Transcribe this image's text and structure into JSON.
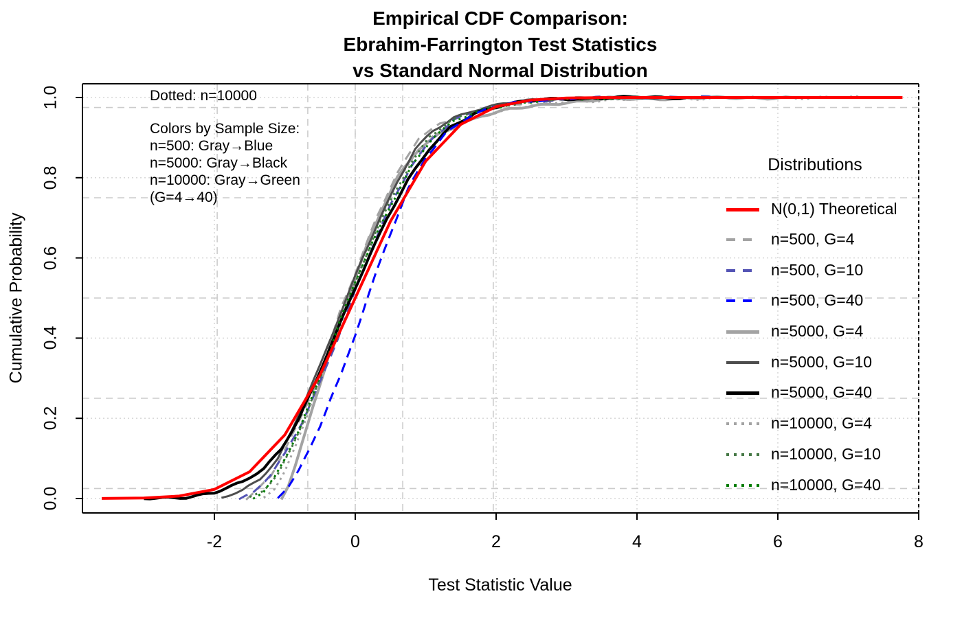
{
  "title": {
    "line1": "Empirical CDF Comparison:",
    "line2": "Ebrahim-Farrington Test Statistics",
    "line3": "vs Standard Normal Distribution"
  },
  "annotations": {
    "dotted_note": "Dotted: n=10000",
    "color_note_lines": [
      "Colors by Sample Size:",
      "n=500: Gray→Blue",
      "n=5000: Gray→Black",
      "n=10000: Gray→Green",
      "(G=4→40)"
    ]
  },
  "legend": {
    "title": "Distributions"
  },
  "chart_data": {
    "type": "line",
    "title": "Empirical CDF Comparison: Ebrahim-Farrington Test Statistics vs Standard Normal Distribution",
    "xlabel": "Test Statistic Value",
    "ylabel": "Cumulative Probability",
    "xlim": [
      -3.87,
      8.0
    ],
    "ylim": [
      -0.036,
      1.034
    ],
    "x_ticks": [
      -2,
      0,
      2,
      4,
      6,
      8
    ],
    "x_tick_labels": [
      "-2",
      "0",
      "2",
      "4",
      "6",
      "8"
    ],
    "y_ticks": [
      0.0,
      0.2,
      0.4,
      0.6,
      0.8,
      1.0
    ],
    "y_tick_labels": [
      "0.0",
      "0.2",
      "0.4",
      "0.6",
      "0.8",
      "1.0"
    ],
    "grid": {
      "tick_grid_style": "dotted",
      "tick_grid_color": "#d9d9d9",
      "quantile_lines_style": "dashed",
      "quantile_lines_color": "#cccccc",
      "h_quantiles": [
        0.025,
        0.25,
        0.5,
        0.75,
        0.975
      ],
      "v_quantiles": [
        -1.96,
        -0.674,
        0,
        0.674,
        1.96
      ]
    },
    "box": {
      "right_edge_style": "dashed",
      "right_edge_color": "#000000"
    },
    "legend_position": "right",
    "series": [
      {
        "name": "N(0,1) Theoretical",
        "color": "#ff0000",
        "style": "solid",
        "lw": 4,
        "z": 10,
        "jitter": false,
        "points": [
          [
            -3.6,
            0.0002
          ],
          [
            -3.0,
            0.0013
          ],
          [
            -2.5,
            0.0062
          ],
          [
            -2.0,
            0.0228
          ],
          [
            -1.5,
            0.0668
          ],
          [
            -1.0,
            0.1587
          ],
          [
            -0.5,
            0.3085
          ],
          [
            0,
            0.5
          ],
          [
            0.5,
            0.6915
          ],
          [
            1.0,
            0.8413
          ],
          [
            1.5,
            0.9332
          ],
          [
            2.0,
            0.9772
          ],
          [
            2.5,
            0.9938
          ],
          [
            3.0,
            0.9987
          ],
          [
            3.5,
            0.9998
          ],
          [
            4.0,
            1
          ],
          [
            7.77,
            1
          ]
        ]
      },
      {
        "name": "n=500, G=4",
        "color": "#a3a3a3",
        "style": "dashed",
        "lw": 3,
        "z": 2,
        "jitter": true,
        "points": [
          [
            -1.55,
            0
          ],
          [
            -1.4,
            0.02
          ],
          [
            -1.2,
            0.055
          ],
          [
            -1.0,
            0.12
          ],
          [
            -0.8,
            0.19
          ],
          [
            -0.6,
            0.27
          ],
          [
            -0.4,
            0.36
          ],
          [
            -0.2,
            0.48
          ],
          [
            0,
            0.56
          ],
          [
            0.3,
            0.7
          ],
          [
            0.6,
            0.81
          ],
          [
            0.9,
            0.9
          ],
          [
            1.2,
            0.935
          ],
          [
            1.5,
            0.955
          ],
          [
            2.0,
            0.975
          ],
          [
            2.5,
            0.99
          ],
          [
            3.0,
            0.997
          ],
          [
            3.6,
            1
          ],
          [
            4.1,
            1
          ]
        ]
      },
      {
        "name": "n=500, G=10",
        "color": "#5353b4",
        "style": "dashed",
        "lw": 3,
        "z": 4,
        "jitter": true,
        "points": [
          [
            -1.65,
            0
          ],
          [
            -1.45,
            0.015
          ],
          [
            -1.2,
            0.06
          ],
          [
            -1.0,
            0.11
          ],
          [
            -0.75,
            0.19
          ],
          [
            -0.5,
            0.29
          ],
          [
            -0.25,
            0.4
          ],
          [
            0,
            0.52
          ],
          [
            0.25,
            0.63
          ],
          [
            0.5,
            0.73
          ],
          [
            0.8,
            0.83
          ],
          [
            1.1,
            0.9
          ],
          [
            1.4,
            0.945
          ],
          [
            1.8,
            0.972
          ],
          [
            2.2,
            0.985
          ],
          [
            2.8,
            0.995
          ],
          [
            3.5,
            0.999
          ],
          [
            4.2,
            1
          ],
          [
            5.2,
            1
          ]
        ]
      },
      {
        "name": "n=500, G=40",
        "color": "#0000ff",
        "style": "dashed",
        "lw": 3,
        "z": 9,
        "jitter": true,
        "points": [
          [
            -1.1,
            0
          ],
          [
            -0.95,
            0.03
          ],
          [
            -0.8,
            0.07
          ],
          [
            -0.65,
            0.12
          ],
          [
            -0.5,
            0.18
          ],
          [
            -0.35,
            0.25
          ],
          [
            -0.2,
            0.31
          ],
          [
            0,
            0.41
          ],
          [
            0.15,
            0.49
          ],
          [
            0.3,
            0.565
          ],
          [
            0.5,
            0.66
          ],
          [
            0.75,
            0.77
          ],
          [
            1.0,
            0.85
          ],
          [
            1.3,
            0.915
          ],
          [
            1.6,
            0.952
          ],
          [
            2.0,
            0.978
          ],
          [
            2.4,
            0.99
          ],
          [
            3.0,
            0.998
          ],
          [
            3.3,
            1
          ]
        ]
      },
      {
        "name": "n=5000, G=4",
        "color": "#a3a3a3",
        "style": "solid",
        "lw": 4,
        "z": 1,
        "jitter": true,
        "points": [
          [
            -1.05,
            0
          ],
          [
            -0.95,
            0.03
          ],
          [
            -0.85,
            0.08
          ],
          [
            -0.75,
            0.14
          ],
          [
            -0.6,
            0.23
          ],
          [
            -0.45,
            0.31
          ],
          [
            -0.3,
            0.4
          ],
          [
            -0.15,
            0.47
          ],
          [
            0,
            0.55
          ],
          [
            0.2,
            0.65
          ],
          [
            0.4,
            0.73
          ],
          [
            0.6,
            0.8
          ],
          [
            0.9,
            0.87
          ],
          [
            1.2,
            0.91
          ],
          [
            1.5,
            0.935
          ],
          [
            1.8,
            0.955
          ],
          [
            2.2,
            0.97
          ],
          [
            2.8,
            0.985
          ],
          [
            3.5,
            0.995
          ],
          [
            4.5,
            0.998
          ],
          [
            5.5,
            0.999
          ],
          [
            6.2,
            1
          ]
        ]
      },
      {
        "name": "n=5000, G=10",
        "color": "#4d4d4d",
        "style": "solid",
        "lw": 3,
        "z": 5,
        "jitter": true,
        "points": [
          [
            -1.9,
            0
          ],
          [
            -1.6,
            0.02
          ],
          [
            -1.35,
            0.05
          ],
          [
            -1.1,
            0.1
          ],
          [
            -0.9,
            0.17
          ],
          [
            -0.7,
            0.25
          ],
          [
            -0.5,
            0.33
          ],
          [
            -0.3,
            0.42
          ],
          [
            -0.1,
            0.51
          ],
          [
            0.1,
            0.6
          ],
          [
            0.35,
            0.7
          ],
          [
            0.6,
            0.79
          ],
          [
            0.85,
            0.87
          ],
          [
            1.1,
            0.915
          ],
          [
            1.4,
            0.95
          ],
          [
            1.7,
            0.97
          ],
          [
            2.1,
            0.985
          ],
          [
            2.6,
            0.994
          ],
          [
            3.2,
            0.998
          ],
          [
            4.5,
            1
          ]
        ]
      },
      {
        "name": "n=5000, G=40",
        "color": "#000000",
        "style": "solid",
        "lw": 4,
        "z": 7,
        "jitter": true,
        "points": [
          [
            -3.0,
            0
          ],
          [
            -2.4,
            0.004
          ],
          [
            -2.0,
            0.014
          ],
          [
            -1.6,
            0.04
          ],
          [
            -1.3,
            0.075
          ],
          [
            -1.05,
            0.125
          ],
          [
            -0.8,
            0.2
          ],
          [
            -0.55,
            0.295
          ],
          [
            -0.3,
            0.4
          ],
          [
            -0.05,
            0.505
          ],
          [
            0.2,
            0.605
          ],
          [
            0.45,
            0.7
          ],
          [
            0.75,
            0.795
          ],
          [
            1.05,
            0.87
          ],
          [
            1.35,
            0.925
          ],
          [
            1.7,
            0.962
          ],
          [
            2.1,
            0.982
          ],
          [
            2.6,
            0.994
          ],
          [
            3.1,
            0.998
          ],
          [
            3.9,
            1
          ],
          [
            4.7,
            1
          ]
        ]
      },
      {
        "name": "n=10000, G=4",
        "color": "#a3a3a3",
        "style": "dotted",
        "lw": 3,
        "z": 3,
        "jitter": true,
        "points": [
          [
            -1.3,
            0
          ],
          [
            -1.15,
            0.025
          ],
          [
            -1.0,
            0.07
          ],
          [
            -0.85,
            0.13
          ],
          [
            -0.7,
            0.2
          ],
          [
            -0.55,
            0.28
          ],
          [
            -0.4,
            0.36
          ],
          [
            -0.25,
            0.43
          ],
          [
            -0.05,
            0.52
          ],
          [
            0.15,
            0.62
          ],
          [
            0.35,
            0.7
          ],
          [
            0.6,
            0.79
          ],
          [
            0.85,
            0.86
          ],
          [
            1.1,
            0.9
          ],
          [
            1.4,
            0.93
          ],
          [
            1.8,
            0.955
          ],
          [
            2.3,
            0.975
          ],
          [
            3.0,
            0.99
          ],
          [
            4.0,
            0.996
          ],
          [
            5.0,
            0.998
          ],
          [
            6.0,
            0.999
          ],
          [
            7.2,
            1
          ]
        ]
      },
      {
        "name": "n=10000, G=10",
        "color": "#457845",
        "style": "dotted",
        "lw": 3,
        "z": 6,
        "jitter": true,
        "points": [
          [
            -1.5,
            0
          ],
          [
            -1.3,
            0.02
          ],
          [
            -1.1,
            0.06
          ],
          [
            -0.9,
            0.13
          ],
          [
            -0.7,
            0.21
          ],
          [
            -0.5,
            0.3
          ],
          [
            -0.3,
            0.39
          ],
          [
            -0.1,
            0.49
          ],
          [
            0.1,
            0.58
          ],
          [
            0.3,
            0.67
          ],
          [
            0.55,
            0.76
          ],
          [
            0.8,
            0.84
          ],
          [
            1.05,
            0.9
          ],
          [
            1.35,
            0.94
          ],
          [
            1.7,
            0.965
          ],
          [
            2.1,
            0.982
          ],
          [
            2.7,
            0.993
          ],
          [
            3.4,
            0.998
          ],
          [
            4.2,
            1
          ]
        ]
      },
      {
        "name": "n=10000, G=40",
        "color": "#007c00",
        "style": "dotted",
        "lw": 3,
        "z": 8,
        "jitter": true,
        "points": [
          [
            -1.45,
            0
          ],
          [
            -1.3,
            0.015
          ],
          [
            -1.15,
            0.05
          ],
          [
            -1.0,
            0.1
          ],
          [
            -0.8,
            0.17
          ],
          [
            -0.6,
            0.26
          ],
          [
            -0.4,
            0.35
          ],
          [
            -0.2,
            0.45
          ],
          [
            0,
            0.54
          ],
          [
            0.25,
            0.64
          ],
          [
            0.5,
            0.73
          ],
          [
            0.8,
            0.83
          ],
          [
            1.1,
            0.9
          ],
          [
            1.4,
            0.94
          ],
          [
            1.8,
            0.968
          ],
          [
            2.2,
            0.984
          ],
          [
            2.8,
            0.995
          ],
          [
            3.5,
            0.999
          ],
          [
            4.0,
            1
          ]
        ]
      }
    ]
  }
}
